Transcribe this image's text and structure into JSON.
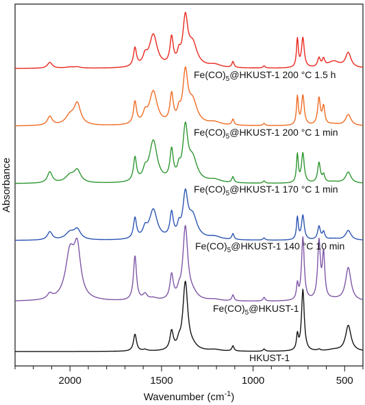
{
  "chart_data": {
    "type": "line",
    "title": "",
    "xlabel": "Wavenumber (cm",
    "xlabel_sup": "-1",
    "xlabel_close": ")",
    "ylabel": "Absorbance",
    "xlim": [
      2300,
      400
    ],
    "x_reversed": true,
    "x_ticks": [
      2000,
      1500,
      1000,
      500
    ],
    "x_tick_labels": [
      "2000",
      "1500",
      "1000",
      "500"
    ],
    "x_minor_step": 100,
    "y_ticks_shown": false,
    "grid": false,
    "legend": "none (labels placed under each trace)",
    "series": [
      {
        "name": "Fe(CO)5@HKUST-1 200 °C 1.5 h",
        "label": {
          "pre": "Fe(CO)",
          "sub": "5",
          "post": "@HKUST-1 200 °C 1.5 h"
        },
        "color": "#e8261b",
        "baseline": 100,
        "gain": 0.9,
        "p": {
          "2110": 0.08,
          "2000": 0.015,
          "1960": 0.015,
          "1645": 0.25,
          "1590": 0.12,
          "1545": 0.44,
          "1445": 0.37,
          "1405": 0.13,
          "1370": 0.62,
          "1330": 0.3,
          "1210": 0.04,
          "1110": 0.08,
          "940": 0.03,
          "758": 0.38,
          "728": 0.4,
          "640": 0.12,
          "615": 0.1,
          "560": 0.09,
          "480": 0.2
        }
      },
      {
        "name": "Fe(CO)5@HKUST-1 200 °C 1 min",
        "label": {
          "pre": "Fe(CO)",
          "sub": "5",
          "post": "@HKUST-1 200 °C 1 min"
        },
        "color": "#ef6a21",
        "baseline": 184,
        "gain": 0.9,
        "p": {
          "2110": 0.12,
          "2000": 0.12,
          "1960": 0.28,
          "1645": 0.3,
          "1590": 0.12,
          "1545": 0.45,
          "1445": 0.38,
          "1405": 0.13,
          "1370": 0.66,
          "1330": 0.3,
          "1210": 0.04,
          "1110": 0.08,
          "940": 0.03,
          "758": 0.38,
          "728": 0.4,
          "640": 0.36,
          "615": 0.24,
          "560": 0.02,
          "480": 0.15
        }
      },
      {
        "name": "Fe(CO)5@HKUST-1 170 °C 1 min",
        "label": {
          "pre": "Fe(CO)",
          "sub": "5",
          "post": "@HKUST-1 170 °C 1 min"
        },
        "color": "#2c962f",
        "baseline": 268,
        "gain": 0.9,
        "p": {
          "2110": 0.15,
          "2000": 0.1,
          "1960": 0.16,
          "1645": 0.32,
          "1590": 0.12,
          "1545": 0.56,
          "1445": 0.4,
          "1405": 0.13,
          "1370": 0.69,
          "1330": 0.3,
          "1210": 0.04,
          "1110": 0.08,
          "940": 0.03,
          "758": 0.38,
          "728": 0.4,
          "640": 0.27,
          "615": 0.1,
          "560": 0.02,
          "480": 0.15
        }
      },
      {
        "name": "Fe(CO)5@HKUST-1 140 °C 10 min",
        "label": {
          "pre": "Fe(CO)",
          "sub": "5",
          "post": "@HKUST-1 140 °C 10 min"
        },
        "color": "#2a53b2",
        "baseline": 351,
        "gain": 0.9,
        "p": {
          "2110": 0.11,
          "2000": 0.1,
          "1960": 0.13,
          "1645": 0.28,
          "1590": 0.12,
          "1545": 0.4,
          "1445": 0.33,
          "1405": 0.13,
          "1370": 0.56,
          "1330": 0.3,
          "1210": 0.04,
          "1110": 0.08,
          "940": 0.03,
          "758": 0.3,
          "728": 0.33,
          "640": 0.18,
          "615": 0.1,
          "560": 0.02,
          "480": 0.13
        }
      },
      {
        "name": "Fe(CO)5@HKUST-1",
        "label": {
          "pre": "Fe(CO)",
          "sub": "5",
          "post": "@HKUST-1"
        },
        "color": "#7d55a6",
        "baseline": 440,
        "gain": 0.9,
        "p": {
          "2110": 0.07,
          "2000": 0.62,
          "1960": 0.62,
          "1645": 0.6,
          "1590": 0.08,
          "1545": 0.03,
          "1445": 0.33,
          "1405": 0.08,
          "1370": 0.98,
          "1330": 0.08,
          "1210": 0.02,
          "1110": 0.08,
          "940": 0.05,
          "758": 0.2,
          "728": 0.85,
          "640": 0.78,
          "615": 0.6,
          "560": 0.02,
          "480": 0.45
        }
      },
      {
        "name": "HKUST-1",
        "label": {
          "pre": "HKUST-1",
          "sub": "",
          "post": ""
        },
        "color": "#111111",
        "baseline": 513,
        "gain": 0.9,
        "p": {
          "2110": 0.0,
          "2000": 0.0,
          "1960": 0.0,
          "1645": 0.23,
          "1590": 0.02,
          "1545": 0.0,
          "1445": 0.25,
          "1405": 0.08,
          "1370": 0.92,
          "1330": 0.05,
          "1210": 0.02,
          "1110": 0.07,
          "940": 0.03,
          "758": 0.2,
          "728": 0.83,
          "640": 0.02,
          "615": 0.0,
          "560": 0.02,
          "480": 0.35
        }
      }
    ]
  }
}
